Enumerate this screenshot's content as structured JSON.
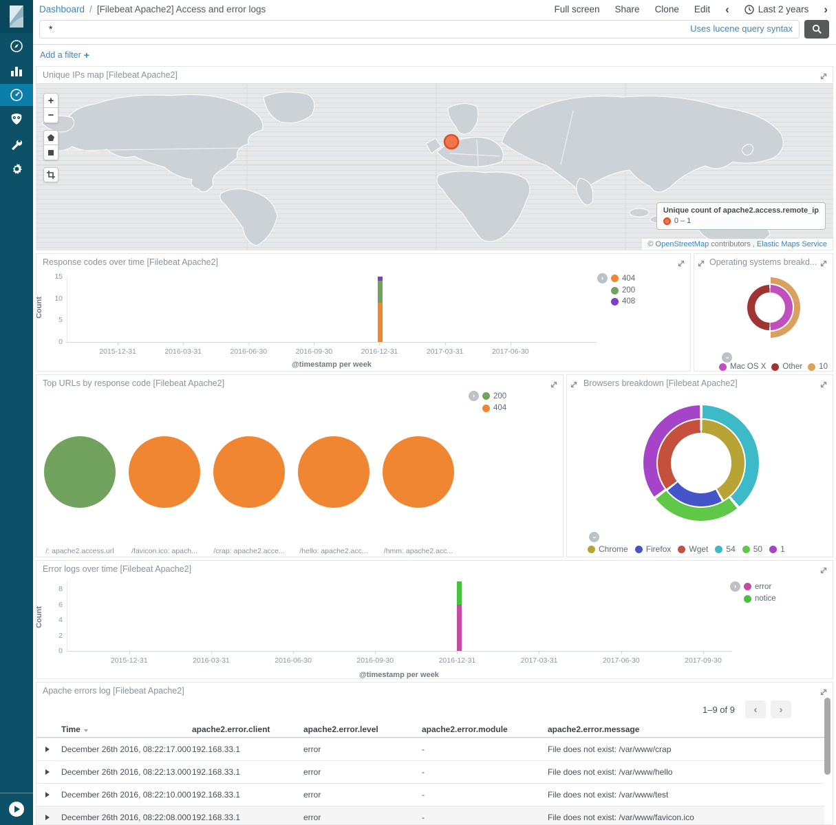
{
  "header": {
    "breadcrumb": {
      "root": "Dashboard",
      "separator": "/",
      "current": "[Filebeat Apache2] Access and error logs"
    },
    "actions": {
      "full_screen": "Full screen",
      "share": "Share",
      "clone": "Clone",
      "edit": "Edit"
    },
    "timepicker": {
      "label": "Last 2 years"
    }
  },
  "query": {
    "value": "*",
    "hint": "Uses lucene query syntax"
  },
  "filter_bar": {
    "add_label": "Add a filter",
    "plus": "+"
  },
  "sidebar_icons": [
    "kibana-logo",
    "discover-compass-icon",
    "visualize-bar-chart-icon",
    "dashboard-gauge-icon",
    "timelion-owl-icon",
    "dev-tools-wrench-icon",
    "management-gear-icon",
    "collapse-play-icon"
  ],
  "map_panel": {
    "title": "Unique IPs map [Filebeat Apache2]",
    "tools": {
      "zoom_in": "+",
      "zoom_out": "−"
    },
    "legend": {
      "title": "Unique count of apache2.access.remote_ip",
      "range_label": "0 – 1",
      "dot_color": "#f0764b"
    },
    "attribution": {
      "copyright": "©",
      "osm_link": "OpenStreetMap",
      "middle": "contributors ,",
      "elastic_link": "Elastic Maps Service"
    }
  },
  "chart_data": [
    {
      "id": "response-codes",
      "type": "bar",
      "title": "Response codes over time [Filebeat Apache2]",
      "xlabel": "@timestamp per week",
      "ylabel": "Count",
      "ylim": [
        0,
        15
      ],
      "yticks": [
        15,
        10,
        5,
        0
      ],
      "xticks": [
        "2015-12-31",
        "2016-03-31",
        "2016-06-30",
        "2016-09-30",
        "2016-12-31",
        "2017-03-31",
        "2017-06-30"
      ],
      "x": "2016-12-31",
      "series": [
        {
          "name": "404",
          "color": "#f08532",
          "value": 9
        },
        {
          "name": "200",
          "color": "#71a35f",
          "value": 5
        },
        {
          "name": "408",
          "color": "#7d3fc9",
          "value": 1
        }
      ]
    },
    {
      "id": "os-breakdown",
      "type": "donut",
      "title": "Operating systems breakd...",
      "rings": {
        "inner": [
          {
            "name": "Mac OS X",
            "color": "#bf51bf",
            "from": 0,
            "to": 180
          },
          {
            "name": "Other",
            "color": "#9e3533",
            "from": 180,
            "to": 360
          }
        ],
        "outer": [
          {
            "name": "10",
            "color": "#d9a05e",
            "from": 0,
            "to": 180
          }
        ]
      }
    },
    {
      "id": "top-urls",
      "type": "pie",
      "title": "Top URLs by response code [Filebeat Apache2]",
      "legend": [
        {
          "name": "200",
          "color": "#71a35f"
        },
        {
          "name": "404",
          "color": "#f08532"
        }
      ],
      "pies": [
        {
          "label": "/: apache2.access.url",
          "slice": "200",
          "color": "#71a35f",
          "fraction": 1
        },
        {
          "label": "/favicon.ico: apach...",
          "slice": "404",
          "color": "#f08532",
          "fraction": 1
        },
        {
          "label": "/crap: apache2.acce...",
          "slice": "404",
          "color": "#f08532",
          "fraction": 1
        },
        {
          "label": "/hello: apache2.acc...",
          "slice": "404",
          "color": "#f08532",
          "fraction": 1
        },
        {
          "label": "/hmm: apache2.acc...",
          "slice": "404",
          "color": "#f08532",
          "fraction": 1
        }
      ]
    },
    {
      "id": "browsers",
      "type": "donut",
      "title": "Browsers breakdown [Filebeat Apache2]",
      "rings": {
        "inner": [
          {
            "name": "Chrome",
            "color": "#b8a335",
            "from": 0,
            "to": 150
          },
          {
            "name": "Firefox",
            "color": "#4355c8",
            "from": 150,
            "to": 232
          },
          {
            "name": "Wget",
            "color": "#c5503b",
            "from": 232,
            "to": 360
          }
        ],
        "outer": [
          {
            "name": "54",
            "color": "#3dbac7",
            "from": 0,
            "to": 140
          },
          {
            "name": "50",
            "color": "#5fc847",
            "from": 140,
            "to": 233
          },
          {
            "name": "1",
            "color": "#a644c9",
            "from": 233,
            "to": 360
          }
        ]
      }
    },
    {
      "id": "error-logs",
      "type": "bar",
      "title": "Error logs over time [Filebeat Apache2]",
      "xlabel": "@timestamp per week",
      "ylabel": "Count",
      "ylim": [
        0,
        9
      ],
      "yticks": [
        8,
        6,
        4,
        2,
        0
      ],
      "xticks": [
        "2015-12-31",
        "2016-03-31",
        "2016-06-30",
        "2016-09-30",
        "2016-12-31",
        "2017-03-31",
        "2017-06-30",
        "2017-09-30"
      ],
      "x": "2016-12-31",
      "series": [
        {
          "name": "error",
          "color": "#c44ba4",
          "value": 6
        },
        {
          "name": "notice",
          "color": "#44c13f",
          "value": 3
        }
      ]
    }
  ],
  "table_panel": {
    "title": "Apache errors log [Filebeat Apache2]",
    "pagination": "1–9 of 9",
    "columns": [
      "Time",
      "apache2.error.client",
      "apache2.error.level",
      "apache2.error.module",
      "apache2.error.message"
    ],
    "rows": [
      {
        "time": "December 26th 2016, 08:22:17.000",
        "client": "192.168.33.1",
        "level": "error",
        "module": "-",
        "message": "File does not exist: /var/www/crap"
      },
      {
        "time": "December 26th 2016, 08:22:13.000",
        "client": "192.168.33.1",
        "level": "error",
        "module": "-",
        "message": "File does not exist: /var/www/hello"
      },
      {
        "time": "December 26th 2016, 08:22:10.000",
        "client": "192.168.33.1",
        "level": "error",
        "module": "-",
        "message": "File does not exist: /var/www/test"
      },
      {
        "time": "December 26th 2016, 08:22:08.000",
        "client": "192.168.33.1",
        "level": "error",
        "module": "-",
        "message": "File does not exist: /var/www/favicon.ico"
      }
    ]
  }
}
